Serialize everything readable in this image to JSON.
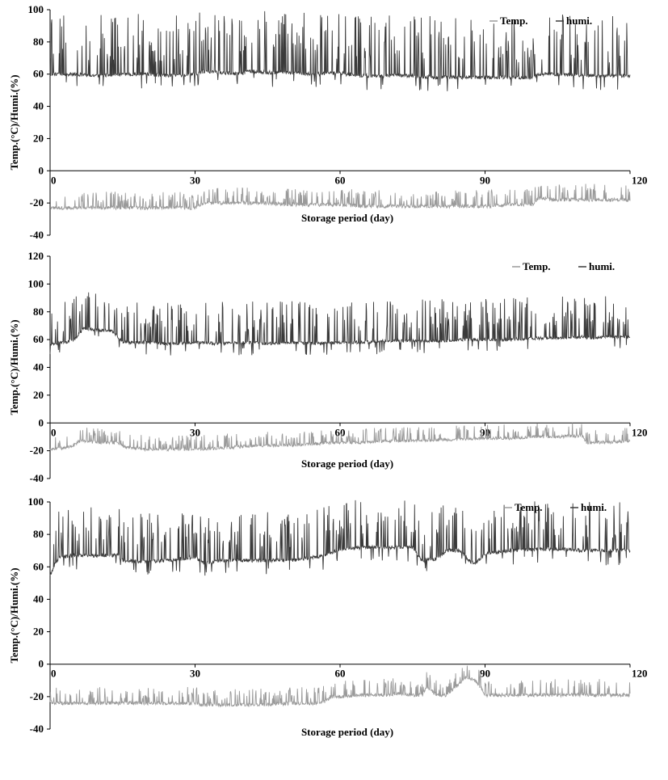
{
  "chart_data": [
    {
      "type": "line",
      "ylabel": "Temp.(°C)/Humi.(%)",
      "xlabel": "Storage period (day)",
      "xlim": [
        0,
        120
      ],
      "ylim": [
        -40,
        100
      ],
      "xticks": [
        0,
        30,
        60,
        90,
        120
      ],
      "yticks": [
        -40,
        -20,
        0,
        20,
        40,
        60,
        80,
        100
      ],
      "legend": {
        "placement": "top-right",
        "entries": [
          "Temp.",
          "humi."
        ]
      },
      "series": [
        {
          "name": "Temp.",
          "color": "#9a9a9a",
          "x": [
            0,
            5,
            10,
            15,
            20,
            25,
            30,
            31,
            33,
            40,
            41,
            45,
            50,
            55,
            60,
            65,
            70,
            75,
            80,
            85,
            90,
            95,
            100,
            101,
            105,
            110,
            115,
            120
          ],
          "y": [
            -23,
            -23,
            -23,
            -23,
            -23,
            -23,
            -23,
            -21,
            -20,
            -20,
            -20,
            -20,
            -21,
            -21,
            -21,
            -22,
            -22,
            -22,
            -22,
            -22,
            -22,
            -21,
            -21,
            -17,
            -18,
            -18,
            -18,
            -18
          ]
        },
        {
          "name": "humi.",
          "color": "#3a3a3a",
          "x": [
            0,
            5,
            10,
            15,
            20,
            25,
            30,
            32,
            35,
            40,
            41,
            45,
            50,
            55,
            60,
            61,
            65,
            70,
            75,
            80,
            85,
            90,
            95,
            100,
            101,
            105,
            110,
            115,
            120
          ],
          "y": [
            60,
            60,
            59,
            60,
            60,
            59,
            60,
            62,
            61,
            60,
            62,
            61,
            61,
            60,
            61,
            60,
            59,
            59,
            59,
            58,
            58,
            58,
            58,
            58,
            60,
            60,
            59,
            59,
            59
          ]
        }
      ]
    },
    {
      "type": "line",
      "ylabel": "Temp.(°C)/Humi.(%)",
      "xlabel": "Storage period (day)",
      "xlim": [
        0,
        120
      ],
      "ylim": [
        -40,
        120
      ],
      "xticks": [
        0,
        30,
        60,
        90,
        120
      ],
      "yticks": [
        -40,
        -20,
        0,
        20,
        40,
        60,
        80,
        100,
        120
      ],
      "legend": {
        "placement": "top-right",
        "entries": [
          "Temp.",
          "humi."
        ]
      },
      "series": [
        {
          "name": "Temp.",
          "color": "#9a9a9a",
          "x": [
            0,
            3,
            5,
            6,
            10,
            14,
            15,
            20,
            25,
            30,
            35,
            40,
            45,
            50,
            55,
            60,
            65,
            70,
            75,
            80,
            85,
            90,
            95,
            100,
            105,
            110,
            111,
            115,
            120
          ],
          "y": [
            -19,
            -18,
            -16,
            -13,
            -14,
            -14,
            -17,
            -19,
            -19,
            -19,
            -18,
            -17,
            -16,
            -16,
            -15,
            -14,
            -14,
            -13,
            -13,
            -12,
            -12,
            -11,
            -11,
            -10,
            -10,
            -9,
            -14,
            -14,
            -13
          ]
        },
        {
          "name": "humi.",
          "color": "#3a3a3a",
          "x": [
            0,
            3,
            5,
            7,
            10,
            13,
            15,
            20,
            25,
            30,
            35,
            40,
            45,
            50,
            55,
            60,
            65,
            70,
            75,
            80,
            85,
            90,
            95,
            100,
            105,
            110,
            112,
            115,
            120
          ],
          "y": [
            57,
            58,
            60,
            68,
            67,
            66,
            58,
            58,
            57,
            58,
            57,
            58,
            57,
            58,
            57,
            58,
            58,
            59,
            59,
            59,
            60,
            60,
            60,
            61,
            61,
            62,
            61,
            62,
            62
          ]
        }
      ]
    },
    {
      "type": "line",
      "ylabel": "Temp.(°C)/Humi.(%)",
      "xlabel": "Storage period (day)",
      "xlim": [
        0,
        120
      ],
      "ylim": [
        -40,
        100
      ],
      "xticks": [
        0,
        30,
        60,
        90,
        120
      ],
      "yticks": [
        -40,
        -20,
        0,
        20,
        40,
        60,
        80,
        100
      ],
      "legend": {
        "placement": "top-right",
        "entries": [
          "Temp.",
          "humi."
        ]
      },
      "series": [
        {
          "name": "Temp.",
          "color": "#9a9a9a",
          "x": [
            0,
            1,
            5,
            10,
            14,
            20,
            25,
            30,
            32,
            35,
            40,
            45,
            50,
            55,
            57,
            58,
            60,
            65,
            70,
            72,
            75,
            77,
            78,
            80,
            82,
            84,
            86,
            88,
            89,
            90,
            95,
            100,
            105,
            110,
            115,
            120
          ],
          "y": [
            -23,
            -24,
            -24,
            -24,
            -24,
            -24,
            -24,
            -24,
            -25,
            -25,
            -25,
            -25,
            -24,
            -24,
            -23,
            -20,
            -20,
            -19,
            -19,
            -18,
            -19,
            -19,
            -14,
            -19,
            -19,
            -14,
            -8,
            -10,
            -14,
            -19,
            -19,
            -19,
            -19,
            -19,
            -19,
            -19
          ]
        },
        {
          "name": "humi.",
          "color": "#3a3a3a",
          "x": [
            0,
            1,
            2,
            5,
            10,
            14,
            15,
            20,
            25,
            30,
            32,
            35,
            40,
            45,
            50,
            55,
            58,
            60,
            65,
            70,
            75,
            77,
            80,
            82,
            85,
            87,
            88,
            90,
            95,
            100,
            105,
            110,
            115,
            120
          ],
          "y": [
            54,
            62,
            66,
            67,
            67,
            67,
            64,
            63,
            64,
            66,
            62,
            64,
            64,
            64,
            64,
            66,
            68,
            71,
            72,
            72,
            72,
            64,
            65,
            70,
            70,
            63,
            62,
            68,
            70,
            71,
            71,
            70,
            70,
            70
          ]
        }
      ]
    }
  ]
}
